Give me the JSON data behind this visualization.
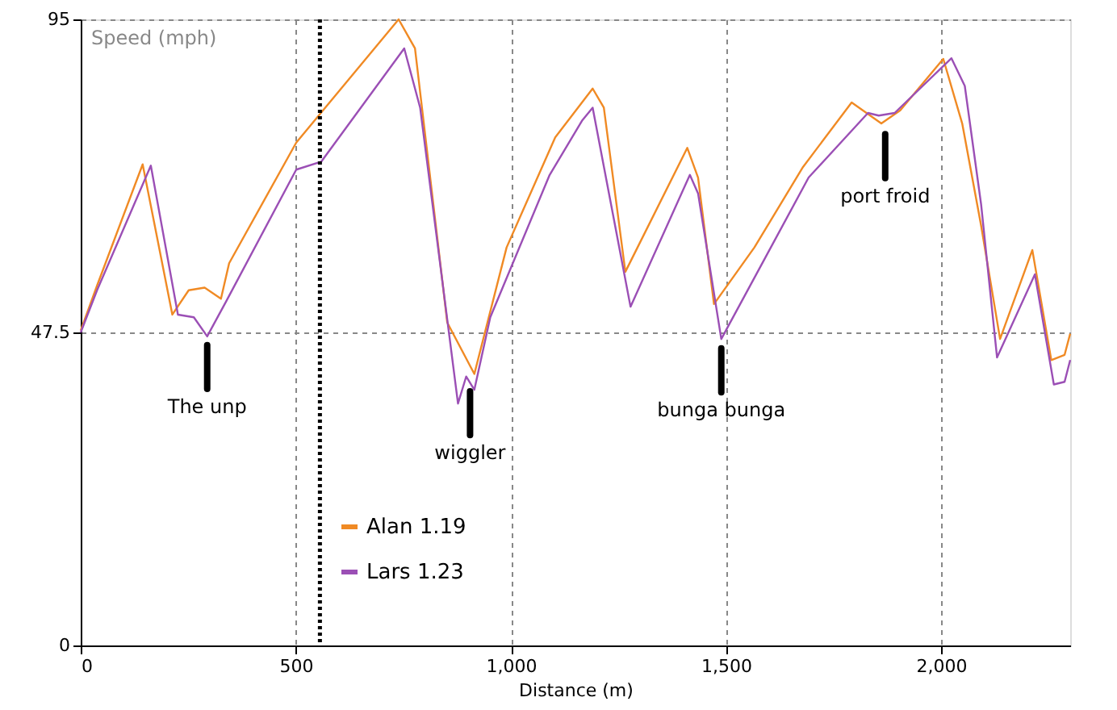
{
  "chart_data": {
    "type": "line",
    "xlabel": "Distance (m)",
    "ylabel": "Speed (mph)",
    "xlim": [
      0,
      2300
    ],
    "xticks": [
      0,
      500,
      {
        "value": 1000,
        "label": "1,000"
      },
      {
        "value": 1500,
        "label": "1,500"
      },
      {
        "value": 2000,
        "label": "2,000"
      }
    ],
    "ylim": [
      0,
      95
    ],
    "yticks": [
      0,
      47.5,
      95
    ],
    "grid": true,
    "legend": "bottom left",
    "marker": "none",
    "line_style": "solid",
    "ref_lines": [
      {
        "axis": "x",
        "value": 556,
        "label": null,
        "line_style": "dotted",
        "color": "#000000"
      }
    ],
    "annotations": [
      {
        "text": "The unp",
        "x": 294,
        "y": 47
      },
      {
        "text": "wiggler",
        "x": 905,
        "y": 40
      },
      {
        "text": "bunga bunga",
        "x": 1489,
        "y": 46.5
      },
      {
        "text": "port froid",
        "x": 1870,
        "y": 79
      }
    ],
    "series": [
      {
        "name": "Alan 1.19",
        "color": "#f08a24",
        "x": [
          0,
          38,
          144,
          213,
          251,
          288,
          326,
          345,
          501,
          739,
          777,
          852,
          915,
          990,
          1103,
          1190,
          1216,
          1266,
          1410,
          1435,
          1472,
          1566,
          1679,
          1792,
          1861,
          1905,
          2005,
          2049,
          2093,
          2137,
          2212,
          2256,
          2287,
          2300
        ],
        "values": [
          47.8,
          54.6,
          73,
          50.2,
          53.9,
          54.3,
          52.6,
          58,
          76.3,
          95,
          90.6,
          49,
          41.2,
          60.4,
          77.1,
          84.5,
          81.6,
          56.7,
          75.5,
          71,
          51.8,
          60.4,
          72.6,
          82.4,
          79.2,
          81.2,
          89,
          79.2,
          63.7,
          46.5,
          60,
          43.3,
          44.1,
          47.3
        ]
      },
      {
        "name": "Lars 1.23",
        "color": "#9b4fb5",
        "x": [
          0,
          38,
          163,
          226,
          263,
          294,
          338,
          501,
          559,
          752,
          789,
          877,
          896,
          915,
          952,
          1090,
          1165,
          1190,
          1278,
          1416,
          1435,
          1489,
          1591,
          1692,
          1830,
          1855,
          1892,
          2024,
          2055,
          2093,
          2130,
          2218,
          2262,
          2287,
          2300
        ],
        "values": [
          47.5,
          53.9,
          72.8,
          50.2,
          49.8,
          46.9,
          52.2,
          72.2,
          73.4,
          90.6,
          81.6,
          36.7,
          40.8,
          38.8,
          49.8,
          71.4,
          79.6,
          81.6,
          51.4,
          71.4,
          68.6,
          46.5,
          58.8,
          71,
          80.8,
          80.4,
          80.8,
          89.1,
          84.9,
          66.9,
          43.7,
          56.3,
          39.6,
          40,
          43.3
        ]
      }
    ]
  }
}
